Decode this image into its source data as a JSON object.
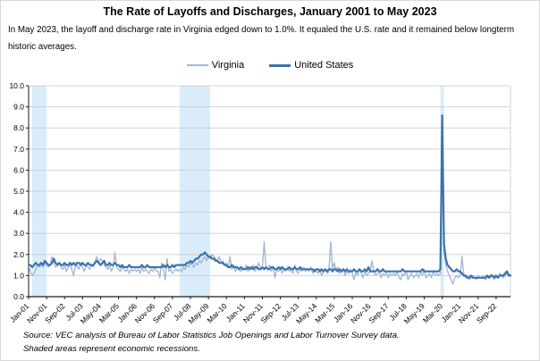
{
  "header": {
    "subtitle": "In May 2023, the layoff and discharge rate in Virginia edged down to 1.0%. It equaled the U.S. rate and it remained below longterm historic averages."
  },
  "footer": {
    "source": "Source: VEC analysis of Bureau of Labor Statistics Job Openings and Labor Turnover Survey data.",
    "note": "Shaded areas represent economic recessions."
  },
  "colors": {
    "virginia_line": "#A3B8D8",
    "us_line": "#3E72AC",
    "recession_band": "#D9ECF9",
    "gridline": "#C9C9C9",
    "axis": "#1a1a1a"
  },
  "chart_data": {
    "type": "line",
    "title": "The Rate of Layoffs and Discharges, January 2001 to May 2023",
    "x_start": "Jan-2001",
    "x_end": "May-2023",
    "x_frequency": "monthly",
    "months_per_tick": 10,
    "x_tick_labels": [
      "Jan-01",
      "Nov-01",
      "Sep-02",
      "Jul-03",
      "May-04",
      "Mar-05",
      "Jan-06",
      "Nov-06",
      "Sep-07",
      "Jul-08",
      "May-09",
      "Mar-10",
      "Jan-11",
      "Nov-11",
      "Sep-12",
      "Jul-13",
      "May-14",
      "Mar-15",
      "Jan-16",
      "Nov-16",
      "Sep-17",
      "Jul-18",
      "May-19",
      "Mar-20",
      "Jan-21",
      "Nov-21",
      "Sep-22"
    ],
    "ylabel": "",
    "ylim": [
      0,
      10
    ],
    "y_tick_labels": [
      "0.0",
      "1.0",
      "2.0",
      "3.0",
      "4.0",
      "5.0",
      "6.0",
      "7.0",
      "8.0",
      "9.0",
      "10.0"
    ],
    "grid": true,
    "legend_position": "top",
    "recession_bands_month_index": [
      [
        2,
        10
      ],
      [
        84,
        101
      ],
      [
        229,
        231
      ]
    ],
    "series": [
      {
        "name": "Virginia",
        "values": [
          1.5,
          1.2,
          1.0,
          1.1,
          1.3,
          1.5,
          1.4,
          1.5,
          1.4,
          1.6,
          1.5,
          1.4,
          1.5,
          1.9,
          1.6,
          1.4,
          1.5,
          1.6,
          1.4,
          1.3,
          1.5,
          1.2,
          1.4,
          1.5,
          1.3,
          1.0,
          1.4,
          1.5,
          1.3,
          1.6,
          1.4,
          1.2,
          1.5,
          1.4,
          1.3,
          1.5,
          1.4,
          1.7,
          1.9,
          1.6,
          1.8,
          1.7,
          1.5,
          1.4,
          1.3,
          1.5,
          1.2,
          1.4,
          2.1,
          1.4,
          1.3,
          1.2,
          1.4,
          1.3,
          1.2,
          1.3,
          1.1,
          1.3,
          1.2,
          1.3,
          1.2,
          1.3,
          1.1,
          1.4,
          1.2,
          1.3,
          1.2,
          1.1,
          1.3,
          1.2,
          1.4,
          1.2,
          1.2,
          0.9,
          1.6,
          1.3,
          0.8,
          1.8,
          1.2,
          1.3,
          1.1,
          1.2,
          1.3,
          1.2,
          1.3,
          1.2,
          1.4,
          1.3,
          1.5,
          1.4,
          1.6,
          1.5,
          1.4,
          1.6,
          1.5,
          1.7,
          1.6,
          1.8,
          1.9,
          1.7,
          1.9,
          1.8,
          2.0,
          1.9,
          1.8,
          1.7,
          1.9,
          1.6,
          1.7,
          1.5,
          1.6,
          1.4,
          1.9,
          1.3,
          1.5,
          1.2,
          1.4,
          1.3,
          1.2,
          1.4,
          1.3,
          1.5,
          1.2,
          1.4,
          1.3,
          1.5,
          1.2,
          1.4,
          1.6,
          1.3,
          1.4,
          2.6,
          1.4,
          1.3,
          1.5,
          1.2,
          1.4,
          0.9,
          1.3,
          1.2,
          1.4,
          1.1,
          1.3,
          1.2,
          1.4,
          1.2,
          1.3,
          1.1,
          1.5,
          1.2,
          1.1,
          1.3,
          1.2,
          1.4,
          1.2,
          1.3,
          1.2,
          1.4,
          1.1,
          1.3,
          1.2,
          1.1,
          1.3,
          1.0,
          1.2,
          1.3,
          1.1,
          1.2,
          2.6,
          1.3,
          1.6,
          1.2,
          1.4,
          1.1,
          1.2,
          1.3,
          1.0,
          1.2,
          1.1,
          1.3,
          1.1,
          0.8,
          1.2,
          1.0,
          1.3,
          1.1,
          0.9,
          1.2,
          1.0,
          1.1,
          1.2,
          1.7,
          1.2,
          1.0,
          1.1,
          1.2,
          0.9,
          1.1,
          1.0,
          1.2,
          0.9,
          1.1,
          1.0,
          1.1,
          1.0,
          1.2,
          0.9,
          0.8,
          1.1,
          1.0,
          1.2,
          0.8,
          1.0,
          1.1,
          0.9,
          1.0,
          1.1,
          0.9,
          1.2,
          1.0,
          1.3,
          0.9,
          1.0,
          1.1,
          0.9,
          1.2,
          1.0,
          1.1,
          1.0,
          1.1,
          8.3,
          2.2,
          1.5,
          1.2,
          1.0,
          0.8,
          0.6,
          0.9,
          1.0,
          0.9,
          1.0,
          1.9,
          1.1,
          0.9,
          1.0,
          0.8,
          0.9,
          1.0,
          0.9,
          0.8,
          1.0,
          0.9,
          0.9,
          1.0,
          0.8,
          0.9,
          1.0,
          0.9,
          1.0,
          0.8,
          1.0,
          0.9,
          1.1,
          1.0,
          0.9,
          1.0,
          1.1,
          1.1,
          1.0
        ]
      },
      {
        "name": "United States",
        "values": [
          1.5,
          1.5,
          1.4,
          1.5,
          1.6,
          1.5,
          1.5,
          1.6,
          1.5,
          1.7,
          1.6,
          1.5,
          1.5,
          1.6,
          1.8,
          1.6,
          1.5,
          1.6,
          1.5,
          1.5,
          1.6,
          1.5,
          1.5,
          1.6,
          1.5,
          1.6,
          1.5,
          1.6,
          1.6,
          1.5,
          1.6,
          1.5,
          1.5,
          1.6,
          1.5,
          1.5,
          1.5,
          1.6,
          1.7,
          1.6,
          1.5,
          1.6,
          1.7,
          1.5,
          1.5,
          1.6,
          1.5,
          1.5,
          1.6,
          1.5,
          1.5,
          1.4,
          1.5,
          1.4,
          1.4,
          1.4,
          1.5,
          1.4,
          1.4,
          1.4,
          1.4,
          1.4,
          1.4,
          1.5,
          1.4,
          1.4,
          1.5,
          1.4,
          1.4,
          1.4,
          1.4,
          1.4,
          1.4,
          1.4,
          1.4,
          1.5,
          1.4,
          1.5,
          1.4,
          1.4,
          1.5,
          1.4,
          1.5,
          1.5,
          1.5,
          1.5,
          1.5,
          1.5,
          1.6,
          1.6,
          1.7,
          1.6,
          1.7,
          1.8,
          1.8,
          1.9,
          2.0,
          2.0,
          2.1,
          2.0,
          1.9,
          1.9,
          1.8,
          1.8,
          1.7,
          1.7,
          1.6,
          1.6,
          1.6,
          1.5,
          1.5,
          1.4,
          1.4,
          1.5,
          1.4,
          1.4,
          1.4,
          1.3,
          1.4,
          1.3,
          1.3,
          1.3,
          1.4,
          1.3,
          1.4,
          1.3,
          1.4,
          1.4,
          1.3,
          1.3,
          1.4,
          1.3,
          1.4,
          1.3,
          1.3,
          1.4,
          1.4,
          1.3,
          1.3,
          1.4,
          1.3,
          1.4,
          1.3,
          1.3,
          1.3,
          1.4,
          1.3,
          1.3,
          1.4,
          1.3,
          1.3,
          1.4,
          1.3,
          1.3,
          1.3,
          1.3,
          1.3,
          1.3,
          1.3,
          1.2,
          1.3,
          1.3,
          1.2,
          1.3,
          1.2,
          1.3,
          1.2,
          1.3,
          1.3,
          1.2,
          1.3,
          1.3,
          1.2,
          1.3,
          1.2,
          1.3,
          1.2,
          1.3,
          1.2,
          1.2,
          1.2,
          1.3,
          1.2,
          1.2,
          1.3,
          1.2,
          1.2,
          1.3,
          1.2,
          1.4,
          1.2,
          1.2,
          1.2,
          1.2,
          1.3,
          1.2,
          1.2,
          1.3,
          1.2,
          1.2,
          1.2,
          1.2,
          1.2,
          1.2,
          1.2,
          1.2,
          1.2,
          1.2,
          1.3,
          1.2,
          1.2,
          1.2,
          1.2,
          1.2,
          1.2,
          1.2,
          1.2,
          1.2,
          1.2,
          1.3,
          1.2,
          1.2,
          1.2,
          1.2,
          1.2,
          1.2,
          1.2,
          1.2,
          1.2,
          1.3,
          8.6,
          2.5,
          1.8,
          1.5,
          1.4,
          1.3,
          1.2,
          1.2,
          1.3,
          1.2,
          1.2,
          1.1,
          1.0,
          1.0,
          0.9,
          0.9,
          1.0,
          0.9,
          0.9,
          0.9,
          0.9,
          0.9,
          0.9,
          0.9,
          0.9,
          1.0,
          0.9,
          1.0,
          1.0,
          0.9,
          1.0,
          0.9,
          1.0,
          1.0,
          1.0,
          1.1,
          1.2,
          1.0,
          1.0
        ]
      }
    ]
  }
}
